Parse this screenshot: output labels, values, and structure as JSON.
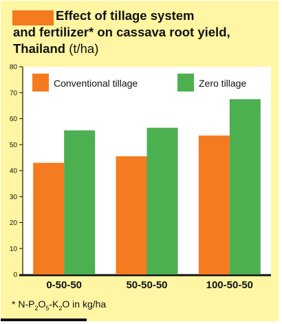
{
  "chart_data": {
    "type": "bar",
    "title_line1": "Effect of tillage system",
    "title_line2": "and fertilizer* on cassava root yield,",
    "title_line3": "Thailand",
    "unit": "(t/ha)",
    "categories": [
      "0-50-50",
      "50-50-50",
      "100-50-50"
    ],
    "series": [
      {
        "name": "Conventional tillage",
        "values": [
          43,
          45.5,
          53.5
        ],
        "color": "#f47b20"
      },
      {
        "name": "Zero tillage",
        "values": [
          55.5,
          56.5,
          67.5
        ],
        "color": "#4caf50"
      }
    ],
    "ylim": [
      0,
      80
    ],
    "yticks": [
      "0",
      "10",
      "20",
      "30",
      "40",
      "50",
      "60",
      "70",
      "80"
    ],
    "grid": false,
    "legend_position": "top",
    "plot_background": "#ffffff",
    "panel_background": "#fff6a3"
  },
  "footnote": {
    "prefix": "* N-P",
    "sub1": "2",
    "mid1": "O",
    "sub2": "5",
    "mid2": "-K",
    "sub3": "2",
    "suffix": "O in kg/ha"
  }
}
